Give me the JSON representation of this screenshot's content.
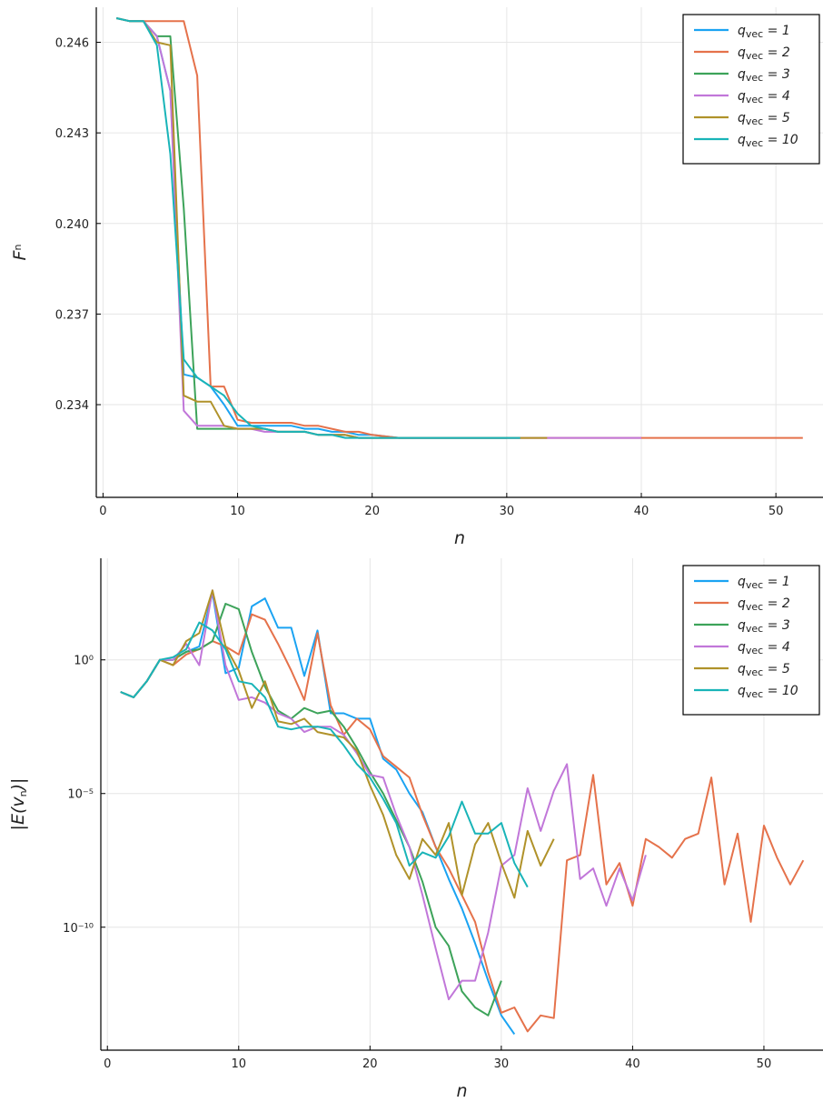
{
  "chart_data": [
    {
      "type": "line",
      "xlabel": "n",
      "ylabel": "F^n",
      "xlim": [
        -0.5,
        53.5
      ],
      "ylim": [
        0.23093,
        0.24716
      ],
      "yscale": "linear",
      "xticks": [
        0,
        10,
        20,
        30,
        40,
        50
      ],
      "xtick_labels": [
        "0",
        "10",
        "20",
        "30",
        "40",
        "50"
      ],
      "yticks": [
        0.234,
        0.237,
        0.24,
        0.243,
        0.246
      ],
      "ytick_labels": [
        "0.234",
        "0.237",
        "0.240",
        "0.243",
        "0.246"
      ],
      "grid": true,
      "legend_position": "top-right",
      "series": [
        {
          "name": "q_vec = 1",
          "color": "#1ba3f2",
          "x": [
            1,
            2,
            3,
            4,
            5,
            6,
            7,
            8,
            9,
            10,
            11,
            12,
            13,
            14,
            15,
            16,
            17,
            18,
            19,
            20,
            22,
            25,
            28,
            31
          ],
          "y": [
            0.2468,
            0.2467,
            0.2467,
            0.2462,
            0.2444,
            0.235,
            0.2349,
            0.2346,
            0.234,
            0.2333,
            0.2333,
            0.2333,
            0.2333,
            0.2333,
            0.2332,
            0.2332,
            0.2331,
            0.2331,
            0.233,
            0.233,
            0.2329,
            0.2329,
            0.2329,
            0.2329
          ]
        },
        {
          "name": "q_vec = 2",
          "color": "#e5724b",
          "x": [
            1,
            2,
            3,
            4,
            5,
            6,
            7,
            8,
            9,
            10,
            11,
            12,
            13,
            14,
            15,
            16,
            17,
            18,
            19,
            20,
            22,
            25,
            30,
            35,
            40,
            45,
            50,
            52
          ],
          "y": [
            0.2468,
            0.2467,
            0.2467,
            0.2467,
            0.2467,
            0.2467,
            0.2449,
            0.2346,
            0.2346,
            0.2335,
            0.2334,
            0.2334,
            0.2334,
            0.2334,
            0.2333,
            0.2333,
            0.2332,
            0.2331,
            0.2331,
            0.233,
            0.2329,
            0.2329,
            0.2329,
            0.2329,
            0.2329,
            0.2329,
            0.2329,
            0.2329
          ]
        },
        {
          "name": "q_vec = 3",
          "color": "#3da35a",
          "x": [
            1,
            2,
            3,
            4,
            5,
            6,
            7,
            8,
            9,
            10,
            11,
            12,
            13,
            14,
            15,
            16,
            17,
            18,
            19,
            20,
            22,
            25,
            28,
            30
          ],
          "y": [
            0.2468,
            0.2467,
            0.2467,
            0.2462,
            0.2462,
            0.2405,
            0.2332,
            0.2332,
            0.2332,
            0.2332,
            0.2332,
            0.2332,
            0.2331,
            0.2331,
            0.2331,
            0.233,
            0.233,
            0.233,
            0.2329,
            0.2329,
            0.2329,
            0.2329,
            0.2329,
            0.2329
          ]
        },
        {
          "name": "q_vec = 4",
          "color": "#c177d9",
          "x": [
            1,
            2,
            3,
            4,
            5,
            6,
            7,
            8,
            9,
            10,
            11,
            12,
            13,
            14,
            15,
            16,
            17,
            18,
            19,
            20,
            22,
            25,
            30,
            35,
            40
          ],
          "y": [
            0.2468,
            0.2467,
            0.2467,
            0.2462,
            0.2444,
            0.2338,
            0.2333,
            0.2333,
            0.2333,
            0.2332,
            0.2332,
            0.2331,
            0.2331,
            0.2331,
            0.2331,
            0.233,
            0.233,
            0.233,
            0.2329,
            0.2329,
            0.2329,
            0.2329,
            0.2329,
            0.2329,
            0.2329
          ]
        },
        {
          "name": "q_vec = 5",
          "color": "#b0922a",
          "x": [
            1,
            2,
            3,
            4,
            5,
            6,
            7,
            8,
            9,
            10,
            11,
            12,
            13,
            14,
            15,
            16,
            17,
            18,
            19,
            20,
            22,
            25,
            30,
            33
          ],
          "y": [
            0.2468,
            0.2467,
            0.2467,
            0.246,
            0.2459,
            0.2343,
            0.2341,
            0.2341,
            0.2333,
            0.2332,
            0.2332,
            0.2332,
            0.2331,
            0.2331,
            0.2331,
            0.233,
            0.233,
            0.233,
            0.2329,
            0.2329,
            0.2329,
            0.2329,
            0.2329,
            0.2329
          ]
        },
        {
          "name": "q_vec = 10",
          "color": "#19b4b8",
          "x": [
            1,
            2,
            3,
            4,
            5,
            6,
            7,
            8,
            9,
            10,
            11,
            12,
            13,
            14,
            15,
            16,
            17,
            18,
            19,
            20,
            22,
            25,
            28,
            31
          ],
          "y": [
            0.2468,
            0.2467,
            0.2467,
            0.2459,
            0.2423,
            0.2355,
            0.2349,
            0.2346,
            0.2343,
            0.2337,
            0.2333,
            0.2332,
            0.2331,
            0.2331,
            0.2331,
            0.233,
            0.233,
            0.2329,
            0.2329,
            0.2329,
            0.2329,
            0.2329,
            0.2329,
            0.2329
          ]
        }
      ]
    },
    {
      "type": "line",
      "xlabel": "n",
      "ylabel": "|E(v_n)|",
      "xlim": [
        -0.5,
        54.5
      ],
      "ylim": [
        -14.6,
        3.8
      ],
      "yscale": "log10",
      "xticks": [
        0,
        10,
        20,
        30,
        40,
        50
      ],
      "xtick_labels": [
        "0",
        "10",
        "20",
        "30",
        "40",
        "50"
      ],
      "yticks": [
        0,
        -5,
        -10
      ],
      "ytick_labels": [
        "10⁰",
        "10⁻⁵",
        "10⁻¹⁰"
      ],
      "grid": true,
      "legend_position": "top-right",
      "series": [
        {
          "name": "q_vec = 1",
          "color": "#1ba3f2",
          "x": [
            1,
            2,
            3,
            4,
            5,
            6,
            7,
            8,
            9,
            10,
            11,
            12,
            13,
            14,
            15,
            16,
            17,
            18,
            19,
            20,
            21,
            22,
            23,
            24,
            25,
            26,
            27,
            28,
            29,
            30,
            31
          ],
          "y": [
            -1.2,
            -1.4,
            -0.8,
            0.0,
            0.0,
            0.3,
            0.5,
            2.5,
            -0.5,
            -0.3,
            2.0,
            2.3,
            1.2,
            1.2,
            -0.6,
            1.1,
            -2.0,
            -2.0,
            -2.2,
            -2.2,
            -3.7,
            -4.1,
            -5.0,
            -5.7,
            -7.0,
            -8.2,
            -9.3,
            -10.6,
            -12.0,
            -13.3,
            -14.0
          ]
        },
        {
          "name": "q_vec = 2",
          "color": "#e5724b",
          "x": [
            1,
            2,
            3,
            4,
            5,
            6,
            7,
            8,
            9,
            10,
            11,
            12,
            13,
            14,
            15,
            16,
            17,
            18,
            19,
            20,
            21,
            22,
            23,
            24,
            25,
            26,
            27,
            28,
            29,
            30,
            31,
            32,
            33,
            34,
            35,
            36,
            37,
            38,
            39,
            40,
            41,
            42,
            43,
            44,
            45,
            46,
            47,
            48,
            49,
            50,
            51,
            52,
            53
          ],
          "y": [
            -1.2,
            -1.4,
            -0.8,
            0.0,
            -0.2,
            0.2,
            0.4,
            0.7,
            0.5,
            0.2,
            1.7,
            1.5,
            0.6,
            -0.4,
            -1.5,
            1.0,
            -1.7,
            -2.8,
            -2.2,
            -2.6,
            -3.6,
            -4.0,
            -4.4,
            -5.8,
            -7.0,
            -7.8,
            -8.8,
            -9.8,
            -11.7,
            -13.2,
            -13.0,
            -13.9,
            -13.3,
            -13.4,
            -7.5,
            -7.3,
            -4.3,
            -8.4,
            -7.6,
            -9.2,
            -6.7,
            -7.0,
            -7.4,
            -6.7,
            -6.5,
            -4.4,
            -8.4,
            -6.5,
            -9.8,
            -6.2,
            -7.4,
            -8.4,
            -7.5
          ]
        },
        {
          "name": "q_vec = 3",
          "color": "#3da35a",
          "x": [
            1,
            2,
            3,
            4,
            5,
            6,
            7,
            8,
            9,
            10,
            11,
            12,
            13,
            14,
            15,
            16,
            17,
            18,
            19,
            20,
            21,
            22,
            23,
            24,
            25,
            26,
            27,
            28,
            29,
            30
          ],
          "y": [
            -1.2,
            -1.4,
            -0.8,
            0.0,
            0.0,
            0.3,
            0.4,
            0.7,
            2.1,
            1.9,
            0.3,
            -1.0,
            -1.9,
            -2.2,
            -1.8,
            -2.0,
            -1.9,
            -2.5,
            -3.3,
            -4.2,
            -5.0,
            -6.0,
            -7.0,
            -8.3,
            -10.0,
            -10.7,
            -12.4,
            -13.0,
            -13.3,
            -12.0
          ]
        },
        {
          "name": "q_vec = 4",
          "color": "#c177d9",
          "x": [
            1,
            2,
            3,
            4,
            5,
            6,
            7,
            8,
            9,
            10,
            11,
            12,
            13,
            14,
            15,
            16,
            17,
            18,
            19,
            20,
            21,
            22,
            23,
            24,
            25,
            26,
            27,
            28,
            29,
            30,
            31,
            32,
            33,
            34,
            35,
            36,
            37,
            38,
            39,
            40,
            41
          ],
          "y": [
            -1.2,
            -1.4,
            -0.8,
            0.0,
            0.0,
            0.6,
            -0.2,
            2.6,
            -0.2,
            -1.5,
            -1.4,
            -1.6,
            -2.0,
            -2.2,
            -2.7,
            -2.5,
            -2.5,
            -2.8,
            -3.5,
            -4.3,
            -4.4,
            -5.8,
            -7.0,
            -8.8,
            -10.8,
            -12.7,
            -12.0,
            -12.0,
            -10.2,
            -7.7,
            -7.3,
            -4.8,
            -6.4,
            -4.9,
            -3.9,
            -8.2,
            -7.8,
            -9.2,
            -7.8,
            -9.0,
            -7.3
          ]
        },
        {
          "name": "q_vec = 5",
          "color": "#b0922a",
          "x": [
            1,
            2,
            3,
            4,
            5,
            6,
            7,
            8,
            9,
            10,
            11,
            12,
            13,
            14,
            15,
            16,
            17,
            18,
            19,
            20,
            21,
            22,
            23,
            24,
            25,
            26,
            27,
            28,
            29,
            30,
            31,
            32,
            33,
            34
          ],
          "y": [
            -1.2,
            -1.4,
            -0.8,
            0.0,
            -0.2,
            0.7,
            1.0,
            2.6,
            0.5,
            -0.4,
            -1.8,
            -0.8,
            -2.3,
            -2.4,
            -2.2,
            -2.7,
            -2.8,
            -2.9,
            -3.4,
            -4.7,
            -5.8,
            -7.3,
            -8.2,
            -6.7,
            -7.3,
            -6.1,
            -8.8,
            -6.9,
            -6.1,
            -7.6,
            -8.9,
            -6.4,
            -7.7,
            -6.7
          ]
        },
        {
          "name": "q_vec = 10",
          "color": "#19b4b8",
          "x": [
            1,
            2,
            3,
            4,
            5,
            6,
            7,
            8,
            9,
            10,
            11,
            12,
            13,
            14,
            15,
            16,
            17,
            18,
            19,
            20,
            21,
            22,
            23,
            24,
            25,
            26,
            27,
            28,
            29,
            30,
            31,
            32
          ],
          "y": [
            -1.2,
            -1.4,
            -0.8,
            0.0,
            0.1,
            0.4,
            1.4,
            1.1,
            0.4,
            -0.8,
            -0.9,
            -1.4,
            -2.5,
            -2.6,
            -2.5,
            -2.5,
            -2.6,
            -3.2,
            -3.9,
            -4.4,
            -5.2,
            -6.1,
            -7.7,
            -7.2,
            -7.4,
            -6.6,
            -5.3,
            -6.5,
            -6.5,
            -6.1,
            -7.6,
            -8.5
          ]
        }
      ]
    }
  ]
}
